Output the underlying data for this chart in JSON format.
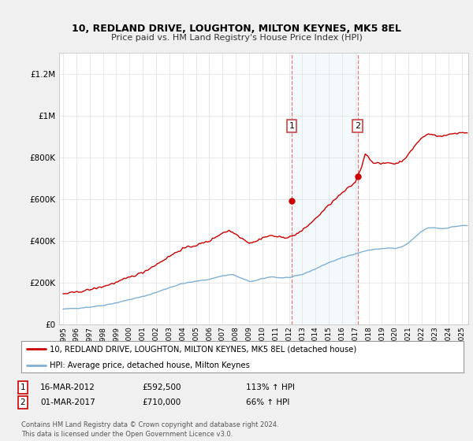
{
  "title": "10, REDLAND DRIVE, LOUGHTON, MILTON KEYNES, MK5 8EL",
  "subtitle": "Price paid vs. HM Land Registry's House Price Index (HPI)",
  "legend_line1": "10, REDLAND DRIVE, LOUGHTON, MILTON KEYNES, MK5 8EL (detached house)",
  "legend_line2": "HPI: Average price, detached house, Milton Keynes",
  "sale1_date": "16-MAR-2012",
  "sale1_price": "£592,500",
  "sale1_hpi": "113% ↑ HPI",
  "sale2_date": "01-MAR-2017",
  "sale2_price": "£710,000",
  "sale2_hpi": "66% ↑ HPI",
  "footer": "Contains HM Land Registry data © Crown copyright and database right 2024.\nThis data is licensed under the Open Government Licence v3.0.",
  "background_color": "#f0f0f0",
  "plot_background": "#ffffff",
  "hpi_line_color": "#7eb0d5",
  "price_line_color": "#cc0000",
  "shade_color": "#d6e8f5",
  "sale1_x": 2012.21,
  "sale1_y": 592500,
  "sale2_x": 2017.17,
  "sale2_y": 710000,
  "shade_x1": 2012.21,
  "shade_x2": 2017.17,
  "ylim": [
    0,
    1300000
  ],
  "xlim_start": 1994.7,
  "xlim_end": 2025.5,
  "yticks": [
    0,
    200000,
    400000,
    600000,
    800000,
    1000000,
    1200000
  ],
  "xticks": [
    1995,
    1996,
    1997,
    1998,
    1999,
    2000,
    2001,
    2002,
    2003,
    2004,
    2005,
    2006,
    2007,
    2008,
    2009,
    2010,
    2011,
    2012,
    2013,
    2014,
    2015,
    2016,
    2017,
    2018,
    2019,
    2020,
    2021,
    2022,
    2023,
    2024,
    2025
  ]
}
